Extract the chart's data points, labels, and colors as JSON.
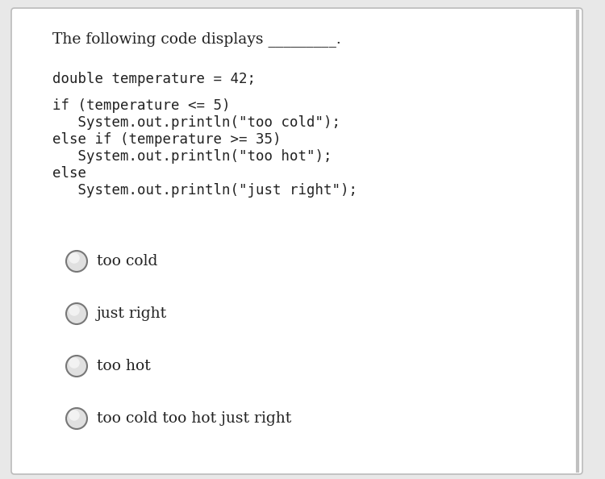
{
  "bg_color": "#e8e8e8",
  "panel_color": "#ffffff",
  "title_text": "The following code displays _________.",
  "title_font": 13.5,
  "code_lines": [
    "double temperature = 42;",
    "",
    "if (temperature <= 5)",
    "   System.out.println(\"too cold\");",
    "else if (temperature >= 35)",
    "   System.out.println(\"too hot\");",
    "else",
    "   System.out.println(\"just right\");"
  ],
  "code_font": 12.5,
  "options": [
    "too cold",
    "just right",
    "too hot",
    "too cold too hot just right"
  ],
  "options_font": 13.5,
  "border_color": "#bbbbbb",
  "text_color": "#222222",
  "circle_edge_color": "#777777",
  "circle_face_color": "#e0e0e0",
  "circle_highlight_color": "#f2f2f2",
  "mono_font": "monospace",
  "serif_font": "DejaVu Serif"
}
